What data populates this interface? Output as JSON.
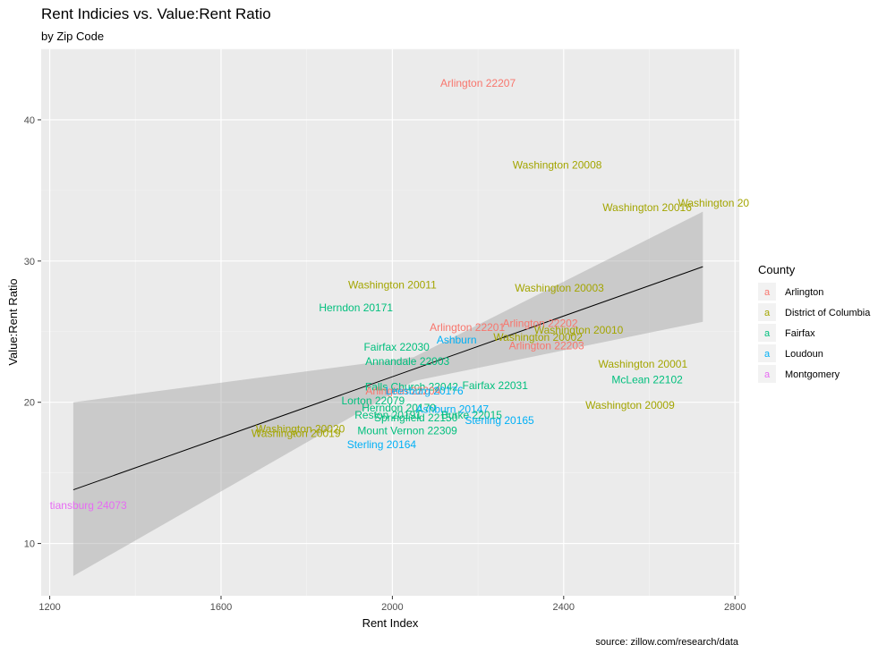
{
  "chart_data": {
    "type": "scatter",
    "title": "Rent Indicies vs. Value:Rent Ratio",
    "subtitle": "by Zip Code",
    "xlabel": "Rent Index",
    "ylabel": "Value:Rent Ratio",
    "caption": "source:    zillow.com/research/data",
    "xlim": [
      1180,
      2810
    ],
    "ylim": [
      6.3,
      45.0
    ],
    "x_ticks": [
      1200,
      1600,
      2000,
      2400,
      2800
    ],
    "y_ticks": [
      10,
      20,
      30,
      40
    ],
    "grid": true,
    "legend": {
      "title": "County",
      "placement": "right",
      "key_glyph": "a",
      "entries": [
        {
          "name": "Arlington",
          "color": "#F8766D"
        },
        {
          "name": "District of Columbia",
          "color": "#A3A500"
        },
        {
          "name": "Fairfax",
          "color": "#00BF7D"
        },
        {
          "name": "Loudoun",
          "color": "#00B0F6"
        },
        {
          "name": "Montgomery",
          "color": "#E76BF3"
        }
      ]
    },
    "trend": {
      "type": "linear",
      "x_start": 1255,
      "y_start": 13.8,
      "x_end": 2725,
      "y_end": 29.6,
      "ci_lower_start": 7.7,
      "ci_upper_start": 20.0,
      "ci_lower_mid": 21.5,
      "ci_upper_mid": 23.2,
      "x_mid": 2050,
      "ci_lower_end": 25.7,
      "ci_upper_end": 33.5
    },
    "points": [
      {
        "label": "Arlington    22207",
        "county": "Arlington",
        "x": 2200,
        "y": 42.6
      },
      {
        "label": "Washington    20008",
        "county": "District of Columbia",
        "x": 2385,
        "y": 36.8
      },
      {
        "label": "Washington    20016",
        "county": "District of Columbia",
        "x": 2595,
        "y": 33.8
      },
      {
        "label": "Washington    20",
        "county": "District of Columbia",
        "x": 2750,
        "y": 34.1
      },
      {
        "label": "Washington    20011",
        "county": "District of Columbia",
        "x": 2000,
        "y": 28.3
      },
      {
        "label": "Washington    20003",
        "county": "District of Columbia",
        "x": 2390,
        "y": 28.1
      },
      {
        "label": "Herndon    20171",
        "county": "Fairfax",
        "x": 1915,
        "y": 26.7
      },
      {
        "label": "Arlington    22202",
        "county": "Arlington",
        "x": 2345,
        "y": 25.6
      },
      {
        "label": "Arlington    22201",
        "county": "Arlington",
        "x": 2175,
        "y": 25.3
      },
      {
        "label": "Washington    20010",
        "county": "District of Columbia",
        "x": 2435,
        "y": 25.1
      },
      {
        "label": "Ashburn",
        "county": "Loudoun",
        "x": 2150,
        "y": 24.4
      },
      {
        "label": "Washington    20002",
        "county": "District of Columbia",
        "x": 2340,
        "y": 24.6
      },
      {
        "label": "Arlington    22203",
        "county": "Arlington",
        "x": 2360,
        "y": 24.0
      },
      {
        "label": "Fairfax    22030",
        "county": "Fairfax",
        "x": 2010,
        "y": 23.9
      },
      {
        "label": "Annandale    22003",
        "county": "Fairfax",
        "x": 2035,
        "y": 22.9
      },
      {
        "label": "Washington    20001",
        "county": "District of Columbia",
        "x": 2585,
        "y": 22.7
      },
      {
        "label": "Fairfax    22031",
        "county": "Fairfax",
        "x": 2240,
        "y": 21.2
      },
      {
        "label": "Falls Church    22042",
        "county": "Fairfax",
        "x": 2045,
        "y": 21.1
      },
      {
        "label": "Arlington    22204",
        "county": "Arlington",
        "x": 2025,
        "y": 20.8
      },
      {
        "label": "Leesburg    20176",
        "county": "Loudoun",
        "x": 2075,
        "y": 20.8
      },
      {
        "label": "McLean    22102",
        "county": "Fairfax",
        "x": 2595,
        "y": 21.6
      },
      {
        "label": "Lorton    22079",
        "county": "Fairfax",
        "x": 1955,
        "y": 20.1
      },
      {
        "label": "Herndon    20170",
        "county": "Fairfax",
        "x": 2015,
        "y": 19.6
      },
      {
        "label": "Ashburn    20147",
        "county": "Loudoun",
        "x": 2140,
        "y": 19.5
      },
      {
        "label": "Washington    20009",
        "county": "District of Columbia",
        "x": 2555,
        "y": 19.8
      },
      {
        "label": "Burke    22015",
        "county": "Fairfax",
        "x": 2185,
        "y": 19.1
      },
      {
        "label": "Reston    20191",
        "county": "Fairfax",
        "x": 1990,
        "y": 19.1
      },
      {
        "label": "Springfield    22150",
        "county": "Fairfax",
        "x": 2055,
        "y": 18.9
      },
      {
        "label": "Sterling    20165",
        "county": "Loudoun",
        "x": 2250,
        "y": 18.7
      },
      {
        "label": "Washington    20020",
        "county": "District of Columbia",
        "x": 1785,
        "y": 18.1
      },
      {
        "label": "Washington    20019",
        "county": "District of Columbia",
        "x": 1775,
        "y": 17.8
      },
      {
        "label": "Mount Vernon    22309",
        "county": "Fairfax",
        "x": 2035,
        "y": 18.0
      },
      {
        "label": "Sterling    20164",
        "county": "Loudoun",
        "x": 1975,
        "y": 17.0
      },
      {
        "label": "tiansburg    24073",
        "county": "Montgomery",
        "x": 1290,
        "y": 12.7
      }
    ]
  }
}
